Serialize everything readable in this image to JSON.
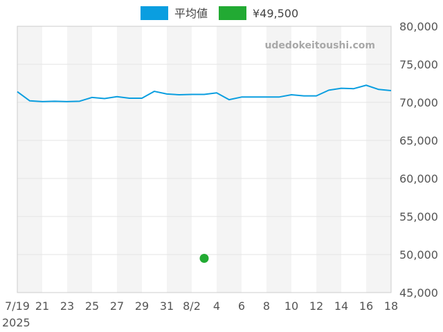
{
  "watermark": "udedokeitoushi.com",
  "chart_data": {
    "type": "line",
    "x": [
      "7/19",
      "7/20",
      "7/21",
      "7/22",
      "7/23",
      "7/24",
      "7/25",
      "7/26",
      "7/27",
      "7/28",
      "7/29",
      "7/30",
      "7/31",
      "8/1",
      "8/2",
      "8/3",
      "8/4",
      "8/5",
      "8/6",
      "8/7",
      "8/8",
      "8/9",
      "8/10",
      "8/11",
      "8/12",
      "8/13",
      "8/14",
      "8/15",
      "8/16",
      "8/17",
      "8/18"
    ],
    "x_tick_labels": [
      {
        "date": "7/19",
        "label": "7/19",
        "sublabel": "2025"
      },
      {
        "date": "7/21",
        "label": "21"
      },
      {
        "date": "7/23",
        "label": "23"
      },
      {
        "date": "7/25",
        "label": "25"
      },
      {
        "date": "7/27",
        "label": "27"
      },
      {
        "date": "7/29",
        "label": "29"
      },
      {
        "date": "7/31",
        "label": "31"
      },
      {
        "date": "8/2",
        "label": "8/2"
      },
      {
        "date": "8/4",
        "label": "4"
      },
      {
        "date": "8/6",
        "label": "6"
      },
      {
        "date": "8/8",
        "label": "8"
      },
      {
        "date": "8/10",
        "label": "10"
      },
      {
        "date": "8/12",
        "label": "12"
      },
      {
        "date": "8/14",
        "label": "14"
      },
      {
        "date": "8/16",
        "label": "16"
      },
      {
        "date": "8/18",
        "label": "18"
      }
    ],
    "ylim": [
      45000,
      80000
    ],
    "y_ticks": [
      45000,
      50000,
      55000,
      60000,
      65000,
      70000,
      75000,
      80000
    ],
    "y_tick_labels": [
      "45,000",
      "50,000",
      "55,000",
      "60,000",
      "65,000",
      "70,000",
      "75,000",
      "80,000"
    ],
    "y_axis_side": "right",
    "grid": true,
    "legend_position": "top-center",
    "series": [
      {
        "name": "平均値",
        "type": "line",
        "color": "#0a9ee0",
        "values": [
          71400,
          70200,
          70100,
          70150,
          70100,
          70150,
          70650,
          70500,
          70750,
          70550,
          70550,
          71450,
          71100,
          71000,
          71050,
          71050,
          71250,
          70350,
          70700,
          70700,
          70700,
          70700,
          71000,
          70850,
          70850,
          71600,
          71850,
          71800,
          72250,
          71700,
          71550
        ]
      },
      {
        "name": "¥49,500",
        "type": "scatter",
        "color": "#22aa33",
        "points": [
          {
            "x": "8/3",
            "y": 49500
          }
        ]
      }
    ]
  }
}
